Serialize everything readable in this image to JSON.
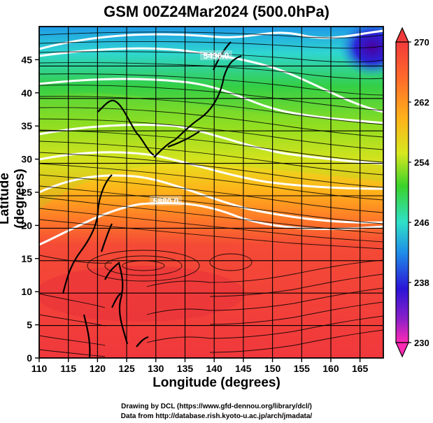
{
  "title": "GSM 00Z24Mar2024 (500.0hPa)",
  "map": {
    "x_label": "Longitude (degrees)",
    "y_label": "Latitude  (degrees)",
    "lon_range": [
      110,
      169
    ],
    "lat_range": [
      0,
      50
    ],
    "lon_ticks": [
      "110",
      "115",
      "120",
      "125",
      "130",
      "135",
      "140",
      "145",
      "150",
      "155",
      "160",
      "165"
    ],
    "lat_ticks": [
      "0",
      "5",
      "10",
      "15",
      "20",
      "25",
      "30",
      "35",
      "40",
      "45"
    ],
    "contour_labels": [
      "5430.0",
      "5880.0"
    ],
    "colorbar": {
      "ticks": [
        "270",
        "262",
        "254",
        "246",
        "238",
        "230"
      ],
      "range": [
        230,
        270
      ],
      "colors": [
        "#ff2ab4",
        "#8a1fc8",
        "#2a14d8",
        "#1f8ee8",
        "#2fe0c8",
        "#3ad22a",
        "#d8e81e",
        "#ffb01a",
        "#ff6a2a",
        "#f23a3a"
      ]
    }
  },
  "credits": {
    "line1": "Drawing by DCL (https://www.gfd-dennou.org/library/dcl/)",
    "line2": "Data from http://database.rish.kyoto-u.ac.jp/arch/jmadata/"
  }
}
